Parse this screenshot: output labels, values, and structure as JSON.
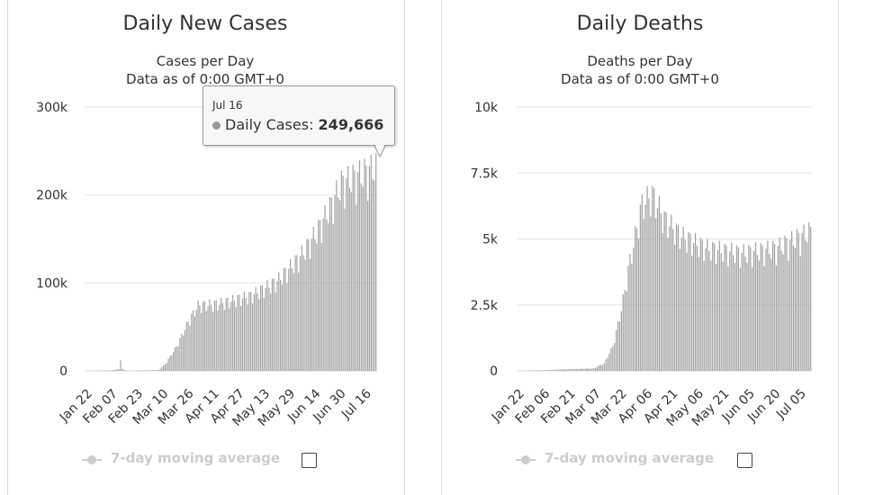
{
  "charts": {
    "cases": {
      "title": "Daily New Cases",
      "subtitle1": "Cases per Day",
      "subtitle2": "Data as of 0:00 GMT+0",
      "legend_label": "7-day moving average",
      "tooltip": {
        "date": "Jul 16",
        "series": "Daily Cases:",
        "value": "249,666"
      }
    },
    "deaths": {
      "title": "Daily Deaths",
      "subtitle1": "Deaths per Day",
      "subtitle2": "Data as of 0:00 GMT+0",
      "legend_label": "7-day moving average"
    }
  },
  "colors": {
    "bar": "#a2a2a2",
    "grid": "#e6e6e6",
    "axis": "#ccd6eb",
    "text": "#333333",
    "legend_inactive": "#cccccc"
  },
  "chart_data": [
    {
      "type": "bar",
      "title": "Daily New Cases",
      "subtitle": "Cases per Day",
      "series": [
        {
          "name": "Daily Cases",
          "start_date": "2020-01-22",
          "anchors": [
            [
              0,
              0
            ],
            [
              14,
              300
            ],
            [
              20,
              2000
            ],
            [
              21,
              15000
            ],
            [
              22,
              2000
            ],
            [
              25,
              0
            ],
            [
              44,
              1000
            ],
            [
              48,
              8000
            ],
            [
              55,
              30000
            ],
            [
              62,
              60000
            ],
            [
              68,
              80000
            ],
            [
              80,
              82000
            ],
            [
              100,
              92000
            ],
            [
              116,
              110000
            ],
            [
              130,
              140000
            ],
            [
              140,
              170000
            ],
            [
              148,
              200000
            ],
            [
              155,
              230000
            ],
            [
              176,
              249666
            ]
          ]
        }
      ],
      "x_ticks": [
        "Jan 22",
        "Feb 07",
        "Feb 23",
        "Mar 10",
        "Mar 26",
        "Apr 11",
        "Apr 27",
        "May 13",
        "May 29",
        "Jun 14",
        "Jun 30",
        "Jul 16"
      ],
      "y_ticks": [
        "0",
        "100k",
        "200k",
        "300k"
      ],
      "ylim": [
        0,
        300000
      ],
      "legend": {
        "label": "7-day moving average",
        "position": "bottom"
      }
    },
    {
      "type": "bar",
      "title": "Daily Deaths",
      "subtitle": "Deaths per Day",
      "series": [
        {
          "name": "Daily Deaths",
          "start_date": "2020-01-22",
          "anchors": [
            [
              0,
              0
            ],
            [
              14,
              20
            ],
            [
              26,
              60
            ],
            [
              44,
              100
            ],
            [
              50,
              300
            ],
            [
              55,
              1000
            ],
            [
              60,
              2500
            ],
            [
              65,
              4500
            ],
            [
              72,
              6800
            ],
            [
              78,
              7200
            ],
            [
              85,
              6200
            ],
            [
              95,
              5500
            ],
            [
              110,
              5000
            ],
            [
              130,
              4800
            ],
            [
              150,
              5000
            ],
            [
              170,
              5700
            ]
          ]
        }
      ],
      "x_ticks": [
        "Jan 22",
        "Feb 06",
        "Feb 21",
        "Mar 07",
        "Mar 22",
        "Apr 06",
        "Apr 21",
        "May 06",
        "May 21",
        "Jun 05",
        "Jun 20",
        "Jul 05"
      ],
      "y_ticks": [
        "0",
        "2.5k",
        "5k",
        "7.5k",
        "10k"
      ],
      "ylim": [
        0,
        10000
      ],
      "legend": {
        "label": "7-day moving average",
        "position": "bottom"
      }
    }
  ]
}
